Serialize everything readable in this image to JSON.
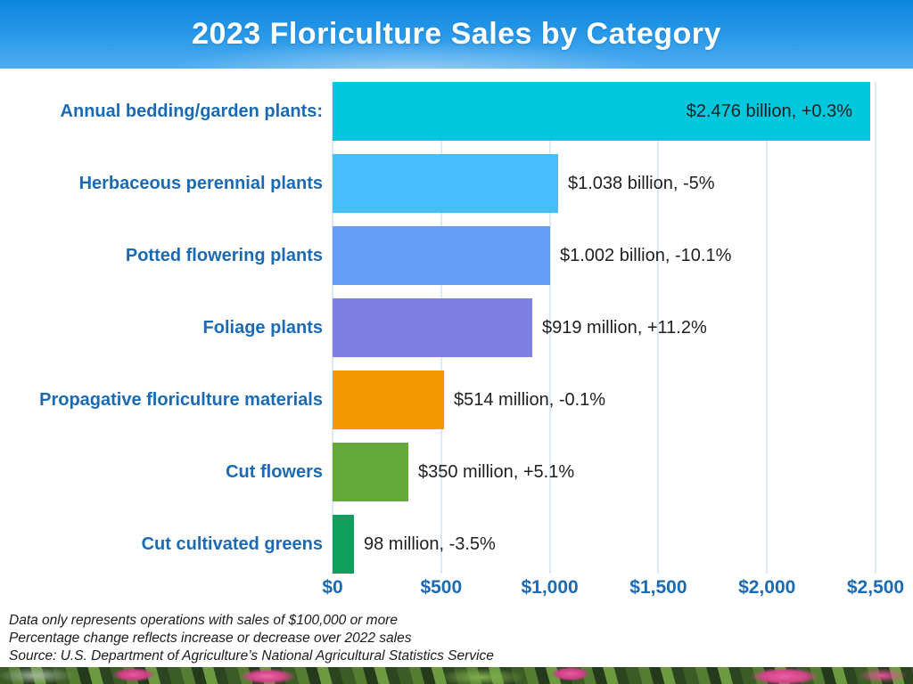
{
  "header": {
    "title": "2023 Floriculture Sales by Category"
  },
  "chart_data": {
    "type": "bar",
    "orientation": "horizontal",
    "title": "2023 Floriculture Sales by Category",
    "categories": [
      "Annual bedding/garden plants:",
      "Herbaceous perennial plants",
      "Potted flowering plants",
      "Foliage plants",
      "Propagative floriculture materials",
      "Cut flowers",
      "Cut cultivated greens"
    ],
    "values_millions": [
      2476,
      1038,
      1002,
      919,
      514,
      350,
      98
    ],
    "value_labels": [
      "$2.476 billion, +0.3%",
      "$1.038 billion, -5%",
      "$1.002 billion, -10.1%",
      "$919 million, +11.2%",
      "$514 million, -0.1%",
      "$350 million, +5.1%",
      "98 million, -3.5%"
    ],
    "bar_colors": [
      "#00c8dc",
      "#47befb",
      "#649ff5",
      "#7f7fe2",
      "#f49800",
      "#66a93b",
      "#129e5c"
    ],
    "xlim": [
      0,
      2500
    ],
    "x_tick_values": [
      0,
      500,
      1000,
      1500,
      2000,
      2500
    ],
    "x_tick_labels": [
      "$0",
      "$500",
      "$1,000",
      "$1,500",
      "$2,000",
      "$2,500"
    ],
    "grid": true,
    "legend": "none",
    "first_bar_label_placement": "inside-right"
  },
  "footnotes": {
    "line1": "Data only represents operations with sales of $100,000 or more",
    "line2": "Percentage change reflects increase or decrease over 2022 sales",
    "line3": "Source: U.S. Department of Agriculture’s National Agricultural Statistics Service"
  },
  "colors": {
    "category_label": "#1b6ab4",
    "axis_label": "#1b6ab4",
    "value_label": "#1e1f22",
    "gridline": "#dce9f7",
    "header_gradient_top": "#0d86e0",
    "header_gradient_bottom": "#51adf0",
    "background": "#ffffff"
  }
}
